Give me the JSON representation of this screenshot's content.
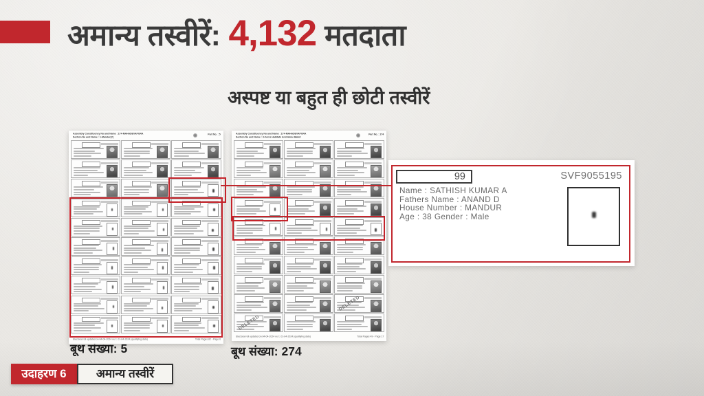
{
  "colors": {
    "accent_red": "#c1272d",
    "text_dark": "#3a3a3a",
    "paper_bg": "#eae8e4"
  },
  "title": {
    "prefix": "अमान्य तस्वीरें:",
    "count": "4,132",
    "suffix": "मतदाता"
  },
  "subtitle": "अस्पष्ट या बहुत ही छोटी तस्वीरें",
  "deleted_stamp": "DELETED",
  "icons": {
    "emblem": "round-seal-emblem"
  },
  "documents": [
    {
      "name": "booth-5",
      "header": {
        "line1": "Assembly Constituency No and Name : 174-MAHADEVAPURA",
        "line2": "Section No and Name : 1-Mandur(V)",
        "part": "Part No. : 5"
      },
      "footer": {
        "left": "Electoral roll updated on 04-04-2024 w.r.t. 01-04-2024 (qualifying date)",
        "right": "Total Pages 82 - Page 6"
      },
      "booth_label": "बूथ संख्या: 5",
      "rows": [
        [
          "photo",
          "photo",
          "photo"
        ],
        [
          "photo",
          "photo",
          "photo"
        ],
        [
          "photo",
          "photo",
          "tiny"
        ],
        [
          "tiny",
          "tiny",
          "tiny"
        ],
        [
          "tiny",
          "tiny",
          "tiny"
        ],
        [
          "tiny",
          "tiny",
          "tiny"
        ],
        [
          "tiny",
          "tiny",
          "tiny"
        ],
        [
          "tiny",
          "tiny",
          "tiny"
        ],
        [
          "tiny",
          "tiny",
          "tiny"
        ],
        [
          "tiny",
          "tiny",
          "tiny"
        ]
      ],
      "highlight_cell": {
        "row": 2,
        "col": 2
      },
      "highlight_block": {
        "from_row": 3,
        "to_row": 9
      },
      "deleted_cells": []
    },
    {
      "name": "booth-274",
      "header": {
        "line1": "Assembly Constituency No and Name : 174-MAHADEVAPURA",
        "line2": "Section No and Name : 3-Ferns Habitats And Akme Ballet",
        "part": "Part No. : 274"
      },
      "footer": {
        "left": "Electoral roll updated on 04-04-2024 w.r.t. 01-04-2024 (qualifying date)",
        "right": "Total Pages 49 - Page 17"
      },
      "booth_label": "बूथ संख्या: 274",
      "rows": [
        [
          "photo",
          "photo",
          "photo"
        ],
        [
          "photo",
          "photo",
          "photo"
        ],
        [
          "photo",
          "photo",
          "photo"
        ],
        [
          "tiny",
          "photo",
          "photo"
        ],
        [
          "tiny",
          "tiny",
          "tiny"
        ],
        [
          "photo",
          "photo",
          "photo"
        ],
        [
          "photo",
          "photo",
          "photo"
        ],
        [
          "photo",
          "photo",
          "photo"
        ],
        [
          "photo",
          "photo",
          "photo"
        ],
        [
          "photo",
          "photo",
          "photo"
        ]
      ],
      "highlight_cell": {
        "row": 3,
        "col": 0
      },
      "highlight_row": 4,
      "deleted_cells": [
        {
          "row": 8,
          "col": 2
        },
        {
          "row": 9,
          "col": 0
        }
      ]
    }
  ],
  "detail_card": {
    "serial": "99",
    "epic": "SVF9055195",
    "lines": [
      "Name : SATHISH KUMAR A",
      "Fathers Name : ANAND D",
      "House Number : MANDUR",
      "Age : 38 Gender : Male"
    ]
  },
  "example_badge": {
    "label": "उदाहरण 6",
    "title": "अमान्य तस्वीरें"
  }
}
